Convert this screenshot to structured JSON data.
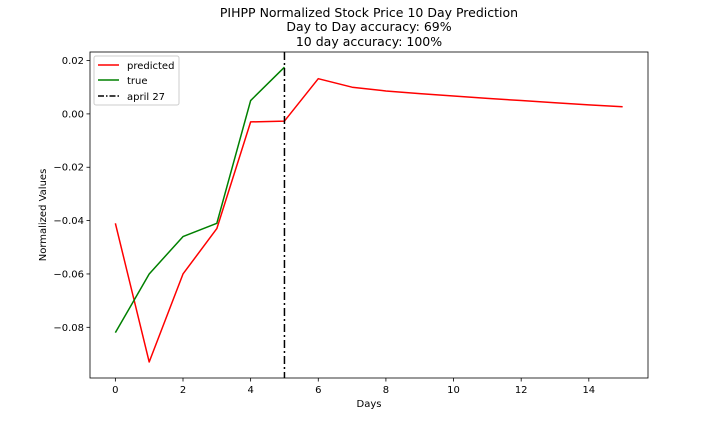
{
  "chart_data": {
    "type": "line",
    "title_lines": [
      "PIHPP Normalized Stock Price 10 Day Prediction",
      "Day to Day accuracy: 69%",
      "10 day accuracy: 100%"
    ],
    "xlabel": "Days",
    "ylabel": "Normalized Values",
    "xlim": [
      -0.75,
      15.75
    ],
    "ylim": [
      -0.099,
      0.0232
    ],
    "xticks": [
      0,
      2,
      4,
      6,
      8,
      10,
      12,
      14
    ],
    "yticks": [
      0.02,
      0.0,
      -0.02,
      -0.04,
      -0.06,
      -0.08
    ],
    "ytick_labels": [
      "0.02",
      "0.00",
      "−0.02",
      "−0.04",
      "−0.06",
      "−0.08"
    ],
    "grid": false,
    "legend_position": "upper-left",
    "series": [
      {
        "name": "predicted",
        "color": "#ff0000",
        "x": [
          0,
          1,
          2,
          3,
          4,
          5,
          6,
          7,
          8,
          9,
          10,
          11,
          12,
          13,
          14,
          15
        ],
        "values": [
          -0.041,
          -0.093,
          -0.06,
          -0.043,
          -0.003,
          -0.0027,
          0.0132,
          0.01,
          0.0086,
          0.0076,
          0.0067,
          0.0058,
          0.005,
          0.0042,
          0.0034,
          0.0027
        ]
      },
      {
        "name": "true",
        "color": "#008000",
        "x": [
          0,
          1,
          2,
          3,
          4,
          5
        ],
        "values": [
          -0.082,
          -0.06,
          -0.046,
          -0.041,
          0.005,
          0.0175
        ]
      }
    ],
    "vline": {
      "name": "april 27",
      "x": 5,
      "color": "#000000",
      "style": "dashdot"
    }
  }
}
